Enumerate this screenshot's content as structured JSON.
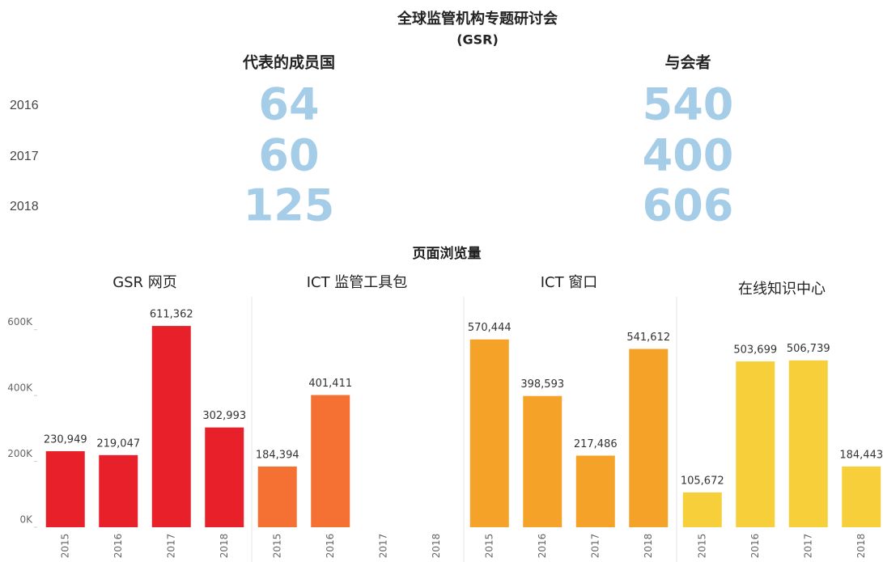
{
  "title": "全球监管机构专题研讨会",
  "subtitle": "(GSR)",
  "stats": {
    "columns": [
      "代表的成员国",
      "与会者"
    ],
    "rows": [
      {
        "year": "2016",
        "values": [
          64,
          540
        ]
      },
      {
        "year": "2017",
        "values": [
          60,
          400
        ]
      },
      {
        "year": "2018",
        "values": [
          125,
          606
        ]
      }
    ]
  },
  "chart_section_title": "页面浏览量",
  "chart_data": [
    {
      "type": "bar",
      "title": "GSR 网页",
      "categories": [
        "2015",
        "2016",
        "2017",
        "2018"
      ],
      "values": [
        230949,
        219047,
        611362,
        302993
      ],
      "value_labels": [
        "230,949",
        "219,047",
        "611,362",
        "302,993"
      ],
      "color": "#e8202a",
      "ylim": [
        0,
        700000
      ],
      "yticks": [
        {
          "value": 0,
          "label": "0K"
        },
        {
          "value": 200000,
          "label": "200K"
        },
        {
          "value": 400000,
          "label": "400K"
        },
        {
          "value": 600000,
          "label": "600K"
        }
      ]
    },
    {
      "type": "bar",
      "title": "ICT 监管工具包",
      "categories": [
        "2015",
        "2016",
        "2017",
        "2018"
      ],
      "values": [
        184394,
        401411,
        null,
        null
      ],
      "value_labels": [
        "184,394",
        "401,411",
        null,
        null
      ],
      "color": "#f47133",
      "ylim": [
        0,
        700000
      ]
    },
    {
      "type": "bar",
      "title": "ICT 窗口",
      "categories": [
        "2015",
        "2016",
        "2017",
        "2018"
      ],
      "values": [
        570444,
        398593,
        217486,
        541612
      ],
      "value_labels": [
        "570,444",
        "398,593",
        "217,486",
        "541,612"
      ],
      "color": "#f5a328",
      "ylim": [
        0,
        700000
      ]
    },
    {
      "type": "bar",
      "title": "在线知识中心",
      "categories": [
        "2015",
        "2016",
        "2017",
        "2018"
      ],
      "values": [
        105672,
        503699,
        506739,
        184443
      ],
      "value_labels": [
        "105,672",
        "503,699",
        "506,739",
        "184,443"
      ],
      "color": "#f7cf3b",
      "ylim": [
        0,
        700000
      ]
    }
  ]
}
